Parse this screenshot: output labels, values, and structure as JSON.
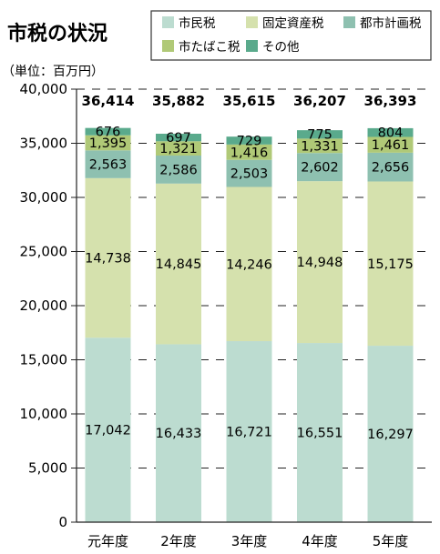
{
  "chart_data": {
    "type": "bar",
    "stacked": true,
    "title": "市税の状況",
    "unit_label": "（単位：百万円）",
    "categories": [
      "元年度",
      "2年度",
      "3年度",
      "4年度",
      "5年度"
    ],
    "series": [
      {
        "name": "市民税",
        "color": "#bcdcd0",
        "values": [
          17042,
          16433,
          16721,
          16551,
          16297
        ],
        "labels": [
          "17,042",
          "16,433",
          "16,721",
          "16,551",
          "16,297"
        ]
      },
      {
        "name": "固定資産税",
        "color": "#d5e1ad",
        "values": [
          14738,
          14845,
          14246,
          14948,
          15175
        ],
        "labels": [
          "14,738",
          "14,845",
          "14,246",
          "14,948",
          "15,175"
        ]
      },
      {
        "name": "都市計画税",
        "color": "#8ec0b0",
        "values": [
          2563,
          2586,
          2503,
          2602,
          2656
        ],
        "labels": [
          "2,563",
          "2,586",
          "2,503",
          "2,602",
          "2,656"
        ]
      },
      {
        "name": "市たばこ税",
        "color": "#b0c977",
        "values": [
          1395,
          1321,
          1416,
          1331,
          1461
        ],
        "labels": [
          "1,395",
          "1,321",
          "1,416",
          "1,331",
          "1,461"
        ]
      },
      {
        "name": "その他",
        "color": "#5aaa8c",
        "values": [
          676,
          697,
          729,
          775,
          804
        ],
        "labels": [
          "676",
          "697",
          "729",
          "775",
          "804"
        ]
      }
    ],
    "totals": [
      36414,
      35882,
      35615,
      36207,
      36393
    ],
    "total_labels": [
      "36,414",
      "35,882",
      "35,615",
      "36,207",
      "36,393"
    ],
    "ylim": [
      0,
      40000
    ],
    "yticks": [
      0,
      5000,
      10000,
      15000,
      20000,
      25000,
      30000,
      35000,
      40000
    ],
    "ytick_labels": [
      "0",
      "5,000",
      "10,000",
      "15,000",
      "20,000",
      "25,000",
      "30,000",
      "35,000",
      "40,000"
    ],
    "grid": "dashed horizontal",
    "legend_position": "top-right"
  }
}
